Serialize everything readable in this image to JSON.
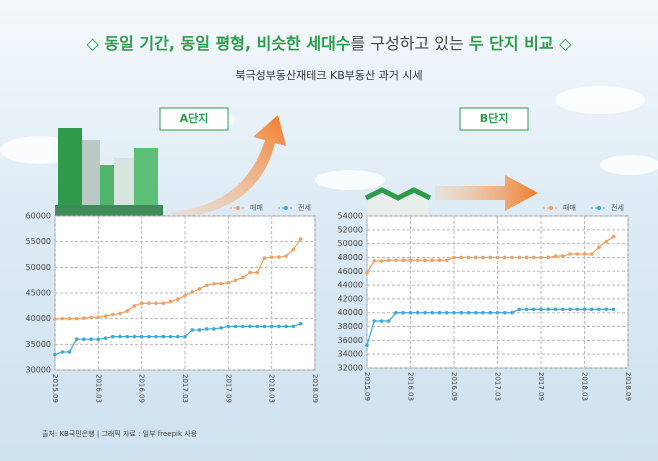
{
  "header": {
    "title": [
      "◇ ",
      "동일 기간, 동일 평형, 비슷한 세대수",
      "를 구성하고 있는 ",
      "두 단지 비교",
      " ◇"
    ],
    "subtitle": "북극성부동산재테크 KB부동산 과거 시세"
  },
  "chart_data": [
    {
      "type": "line",
      "title": "A단지",
      "x": [
        0,
        1,
        2,
        3,
        4,
        5,
        6,
        7,
        8,
        9,
        10,
        11,
        12,
        13,
        14,
        15,
        16,
        17,
        18,
        19,
        20,
        21,
        22,
        23,
        24,
        25,
        26,
        27,
        28,
        29,
        30,
        31,
        32,
        33,
        34
      ],
      "xlim": [
        0,
        36
      ],
      "xticks": [
        {
          "value": 0,
          "label": "2015.09"
        },
        {
          "value": 6,
          "label": "2016.03"
        },
        {
          "value": 12,
          "label": "2016.09"
        },
        {
          "value": 18,
          "label": "2017.03"
        },
        {
          "value": 24,
          "label": "2017.09"
        },
        {
          "value": 30,
          "label": "2018.03"
        },
        {
          "value": 36,
          "label": "2018.09"
        }
      ],
      "ylim": [
        30000,
        60000
      ],
      "yticks": [
        30000,
        35000,
        40000,
        45000,
        50000,
        55000,
        60000
      ],
      "grid": true,
      "series": [
        {
          "name": "매매",
          "color": "#f0a064",
          "values": [
            39900,
            40000,
            40000,
            40000,
            40100,
            40200,
            40300,
            40500,
            40800,
            41000,
            41500,
            42500,
            43000,
            43000,
            43000,
            43000,
            43300,
            43800,
            44500,
            45200,
            45800,
            46500,
            46800,
            46800,
            47000,
            47500,
            48000,
            49000,
            49000,
            51800,
            52000,
            52000,
            52200,
            53500,
            55500
          ]
        },
        {
          "name": "전세",
          "color": "#3fa9d8",
          "values": [
            33000,
            33500,
            33500,
            36000,
            36000,
            36000,
            36000,
            36200,
            36500,
            36500,
            36500,
            36500,
            36500,
            36500,
            36500,
            36500,
            36500,
            36500,
            36500,
            37800,
            37800,
            38000,
            38000,
            38200,
            38500,
            38500,
            38500,
            38500,
            38500,
            38500,
            38500,
            38500,
            38500,
            38500,
            39000
          ]
        }
      ]
    },
    {
      "type": "line",
      "title": "B단지",
      "x": [
        0,
        1,
        2,
        3,
        4,
        5,
        6,
        7,
        8,
        9,
        10,
        11,
        12,
        13,
        14,
        15,
        16,
        17,
        18,
        19,
        20,
        21,
        22,
        23,
        24,
        25,
        26,
        27,
        28,
        29,
        30,
        31,
        32,
        33,
        34
      ],
      "xlim": [
        0,
        36
      ],
      "xticks": [
        {
          "value": 0,
          "label": "2015.09"
        },
        {
          "value": 6,
          "label": "2016.03"
        },
        {
          "value": 12,
          "label": "2016.09"
        },
        {
          "value": 18,
          "label": "2017.03"
        },
        {
          "value": 24,
          "label": "2017.09"
        },
        {
          "value": 30,
          "label": "2018.03"
        },
        {
          "value": 36,
          "label": "2018.09"
        }
      ],
      "ylim": [
        32000,
        54000
      ],
      "yticks": [
        32000,
        34000,
        36000,
        38000,
        40000,
        42000,
        44000,
        46000,
        48000,
        50000,
        52000,
        54000
      ],
      "grid": true,
      "series": [
        {
          "name": "매매",
          "color": "#f0a064",
          "values": [
            45800,
            47500,
            47500,
            47600,
            47600,
            47600,
            47600,
            47600,
            47600,
            47600,
            47600,
            47600,
            48000,
            48000,
            48000,
            48000,
            48000,
            48000,
            48000,
            48000,
            48000,
            48000,
            48000,
            48000,
            48000,
            48000,
            48200,
            48200,
            48500,
            48500,
            48500,
            48500,
            49500,
            50300,
            51000
          ]
        },
        {
          "name": "전세",
          "color": "#3fa9d8",
          "values": [
            35300,
            38800,
            38800,
            38800,
            40000,
            40000,
            40000,
            40000,
            40000,
            40000,
            40000,
            40000,
            40000,
            40000,
            40000,
            40000,
            40000,
            40000,
            40000,
            40000,
            40000,
            40500,
            40500,
            40500,
            40500,
            40500,
            40500,
            40500,
            40500,
            40500,
            40500,
            40500,
            40500,
            40500,
            40500
          ]
        }
      ]
    }
  ],
  "footer": {
    "source": "출처: KB국민은행 | 그래픽 자료 : 일부 freepik 사용"
  }
}
